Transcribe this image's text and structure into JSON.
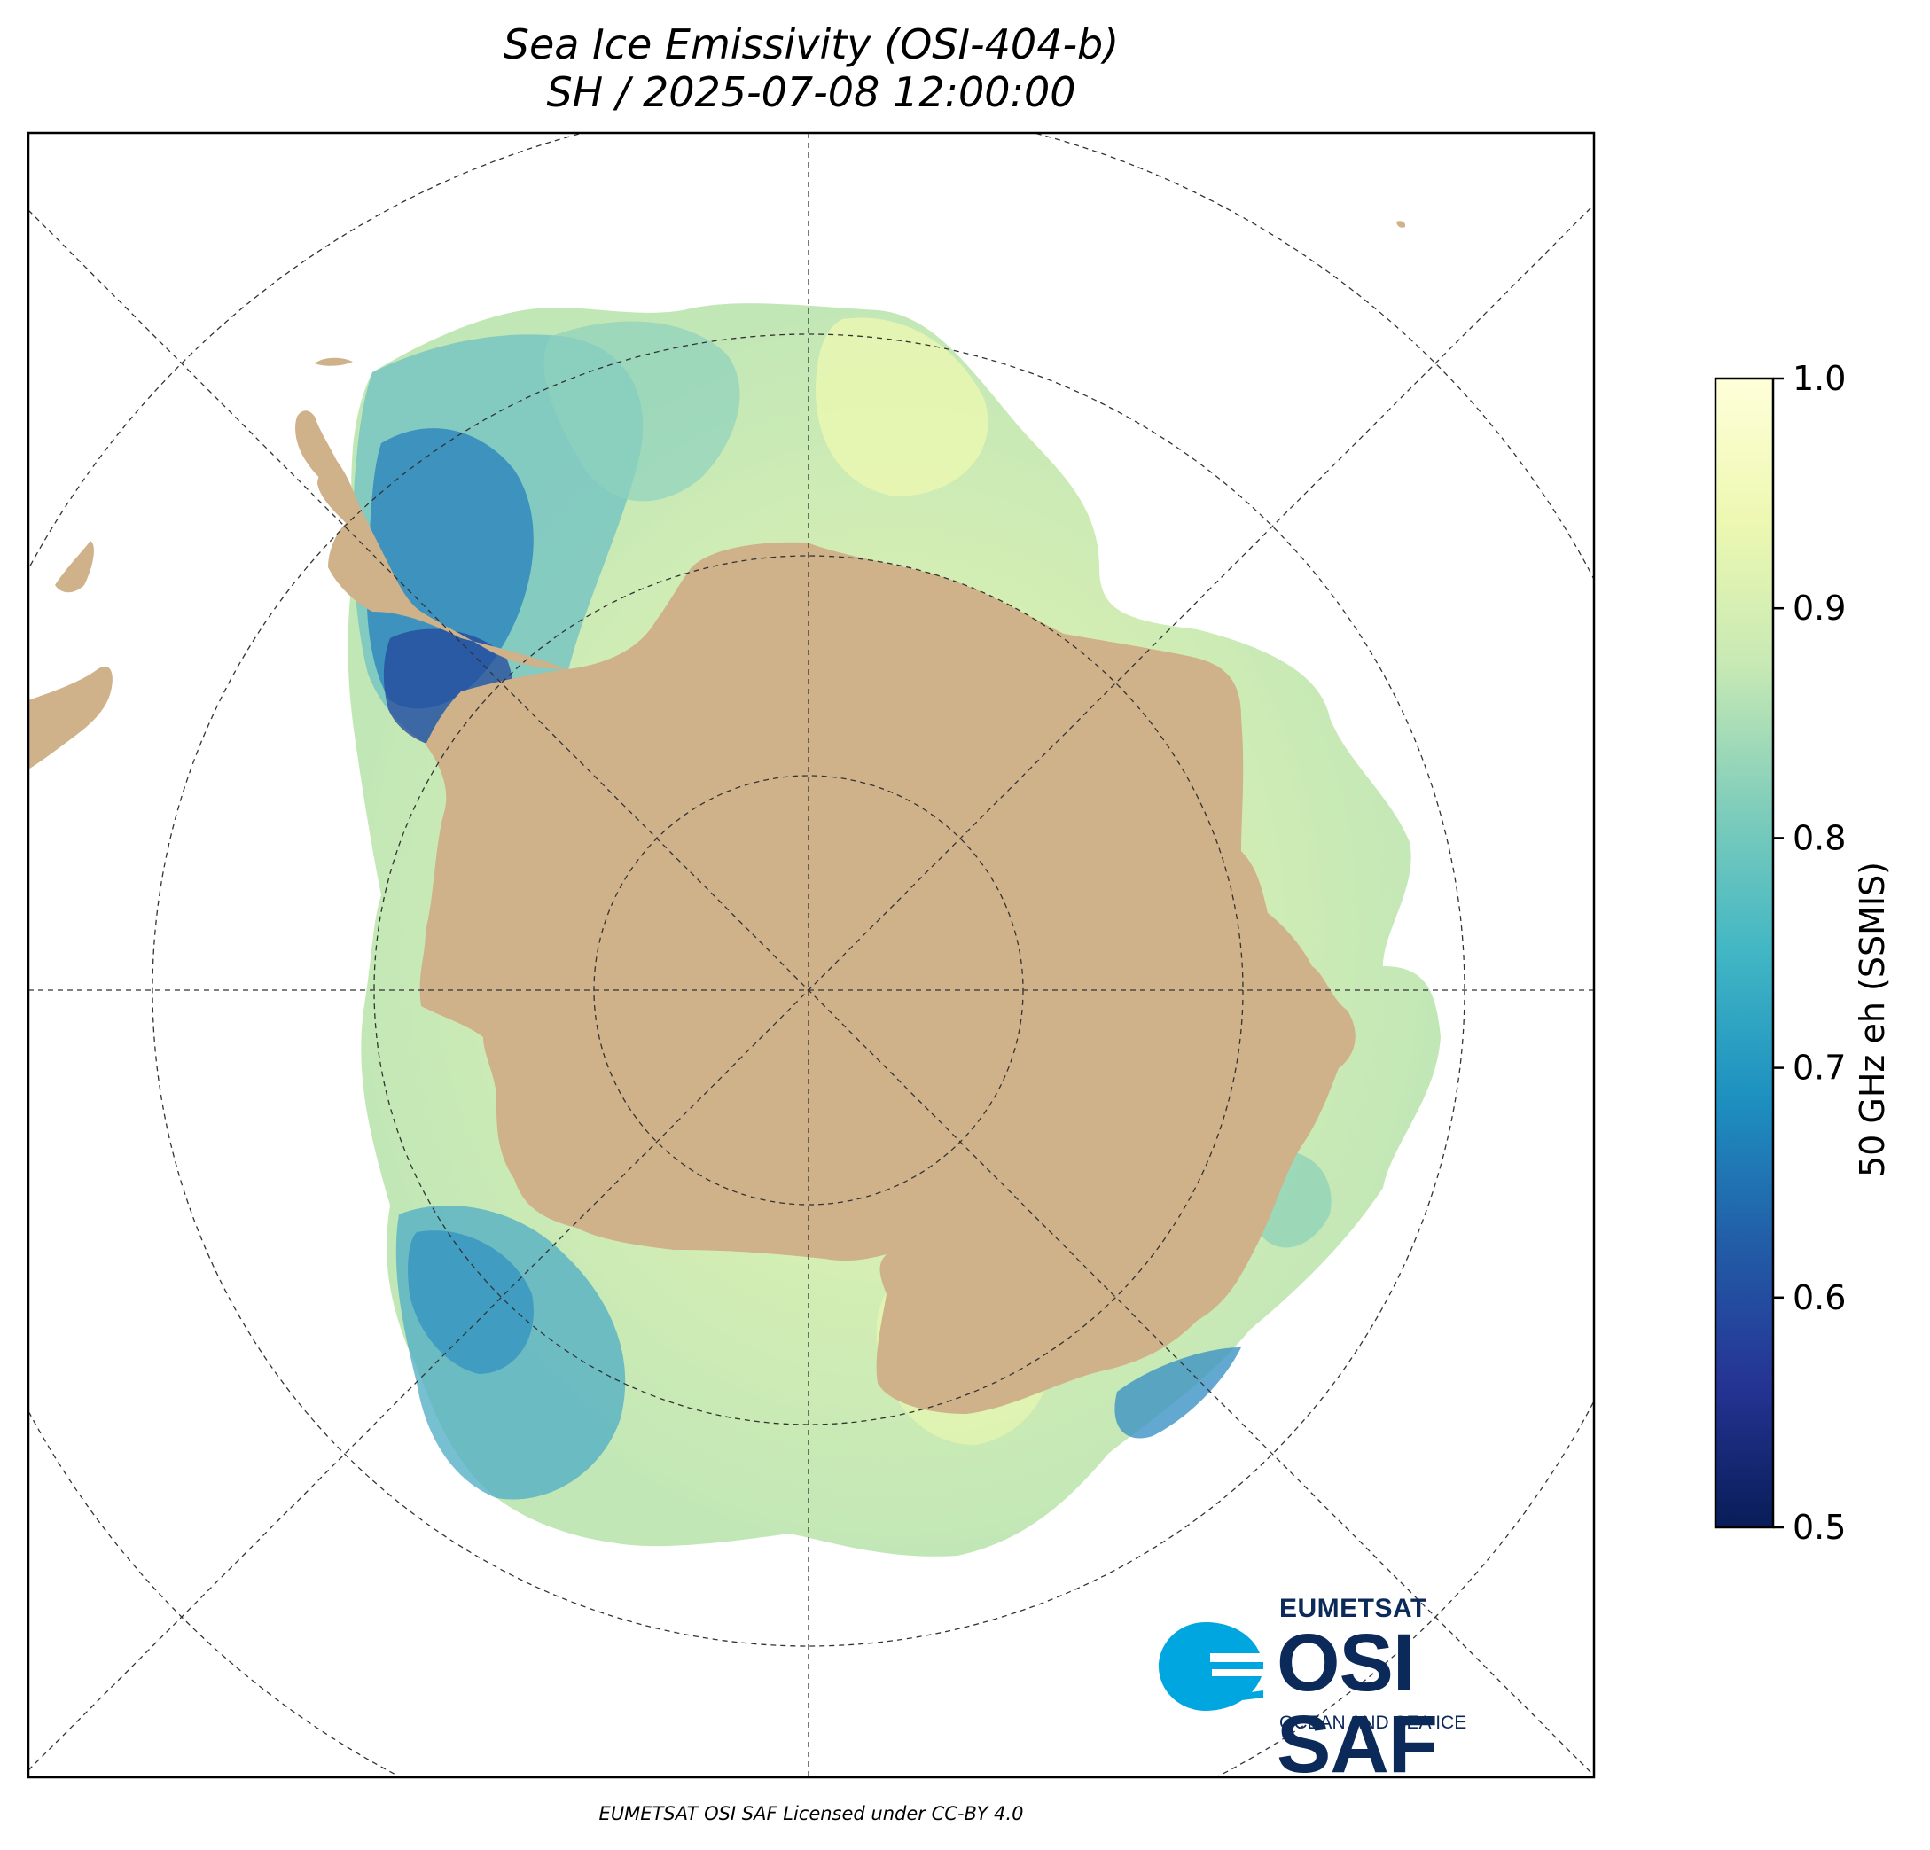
{
  "title_line1": "Sea Ice Emissivity (OSI-404-b)",
  "title_line2": "SH / 2025-07-08 12:00:00",
  "colorbar": {
    "label": "50 GHz eh (SSMIS)",
    "min": 0.5,
    "max": 1.0,
    "ticks": [
      "0.5",
      "0.6",
      "0.7",
      "0.8",
      "0.9",
      "1.0"
    ],
    "colormap": "YlGnBu_r",
    "colors": [
      "#081d58",
      "#253494",
      "#225ea8",
      "#1d91c0",
      "#41b6c4",
      "#7fcdbb",
      "#c7e9b4",
      "#edf8b1",
      "#ffffd9"
    ]
  },
  "map": {
    "projection": "south polar stereographic",
    "land_color": "#cfb18a",
    "ocean_color": "#ffffff",
    "gridlines": "dashed"
  },
  "logo": {
    "org": "EUMETSAT",
    "name": "OSI SAF",
    "tagline": "OCEAN AND SEA ICE"
  },
  "footer": "EUMETSAT OSI SAF Licensed under CC-BY 4.0"
}
